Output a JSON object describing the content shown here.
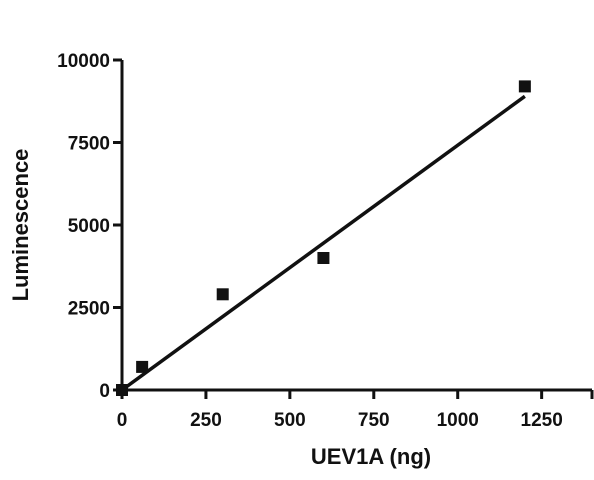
{
  "chart_data": {
    "type": "scatter",
    "xlabel": "UEV1A (ng)",
    "ylabel": "Luminescence",
    "xlim": [
      0,
      1400
    ],
    "ylim": [
      0,
      10000
    ],
    "x_ticks": [
      "0",
      "250",
      "500",
      "750",
      "1000",
      "1250"
    ],
    "x_tick_values": [
      0,
      250,
      500,
      750,
      1000,
      1250
    ],
    "y_ticks": [
      "0",
      "2500",
      "5000",
      "7500",
      "10000"
    ],
    "y_tick_values": [
      0,
      2500,
      5000,
      7500,
      10000
    ],
    "grid": false,
    "points": [
      {
        "x": 0,
        "y": 0
      },
      {
        "x": 60,
        "y": 700
      },
      {
        "x": 300,
        "y": 2900
      },
      {
        "x": 600,
        "y": 4000
      },
      {
        "x": 1200,
        "y": 9200
      }
    ],
    "fit_line": {
      "x": [
        0,
        1200
      ],
      "y": [
        0,
        8900
      ]
    },
    "marker": "square",
    "color": "#111111"
  }
}
